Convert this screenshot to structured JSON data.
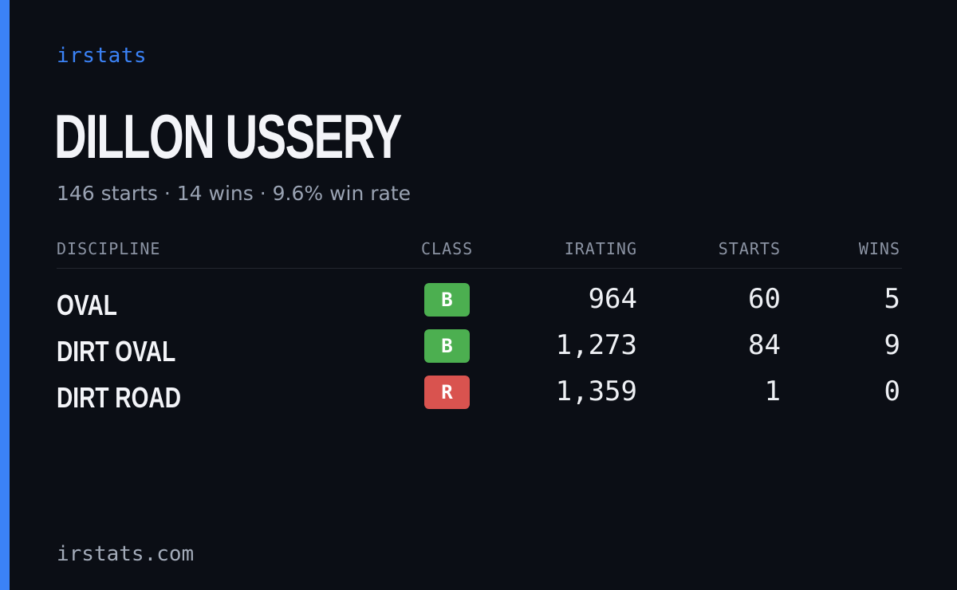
{
  "header": {
    "brand": "irstats",
    "driver_name": "DILLON USSERY",
    "summary": "146 starts · 14 wins · 9.6% win rate"
  },
  "table": {
    "columns": {
      "discipline": "DISCIPLINE",
      "class": "CLASS",
      "irating": "IRATING",
      "starts": "STARTS",
      "wins": "WINS"
    },
    "rows": [
      {
        "discipline": "OVAL",
        "class": "B",
        "class_color": "#4caf50",
        "irating": "964",
        "starts": "60",
        "wins": "5"
      },
      {
        "discipline": "DIRT OVAL",
        "class": "B",
        "class_color": "#4caf50",
        "irating": "1,273",
        "starts": "84",
        "wins": "9"
      },
      {
        "discipline": "DIRT ROAD",
        "class": "R",
        "class_color": "#d9534f",
        "irating": "1,359",
        "starts": "1",
        "wins": "0"
      }
    ]
  },
  "footer": {
    "site": "irstats.com"
  },
  "colors": {
    "accent": "#3b82f6",
    "background": "#0b0e15",
    "class_b": "#4caf50",
    "class_r": "#d9534f"
  }
}
